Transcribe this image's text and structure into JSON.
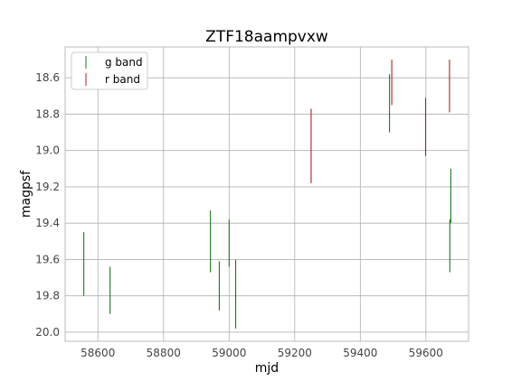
{
  "chart_data": {
    "type": "scatter",
    "title": "ZTF18aampvxw",
    "xlabel": "mjd",
    "ylabel": "magpsf",
    "xlim": [
      58500,
      59730
    ],
    "ylim": [
      20.05,
      18.43
    ],
    "y_inverted": true,
    "grid": true,
    "legend_position": "top-left",
    "xticks": [
      58600,
      58800,
      59000,
      59200,
      59400,
      59600
    ],
    "yticks": [
      18.6,
      18.8,
      19.0,
      19.2,
      19.4,
      19.6,
      19.8,
      20.0
    ],
    "xtick_labels": [
      "58600",
      "58800",
      "59000",
      "59200",
      "59400",
      "59600"
    ],
    "ytick_labels": [
      "18.6",
      "18.8",
      "19.0",
      "19.2",
      "19.4",
      "19.6",
      "19.8",
      "20.0"
    ],
    "series": [
      {
        "name": "g band",
        "color": "#1a7a1a",
        "points": [
          {
            "x": 58557,
            "y_low": 19.45,
            "y_high": 19.8
          },
          {
            "x": 58637,
            "y_low": 19.64,
            "y_high": 19.9
          },
          {
            "x": 58943,
            "y_low": 19.33,
            "y_high": 19.67
          },
          {
            "x": 58970,
            "y_low": 19.61,
            "y_high": 19.88
          },
          {
            "x": 59000,
            "y_low": 19.38,
            "y_high": 19.64
          },
          {
            "x": 59020,
            "y_low": 19.6,
            "y_high": 19.98
          },
          {
            "x": 59489,
            "y_low": 18.58,
            "y_high": 18.9
          },
          {
            "x": 59673,
            "y_low": 19.38,
            "y_high": 19.67
          },
          {
            "x": 59676,
            "y_low": 19.1,
            "y_high": 19.4
          }
        ]
      },
      {
        "name": "r band",
        "color": "#b22222",
        "points": [
          {
            "x": 59250,
            "y_low": 18.77,
            "y_high": 19.18
          },
          {
            "x": 59496,
            "y_low": 18.5,
            "y_high": 18.75
          },
          {
            "x": 59599,
            "y_low": 18.71,
            "y_high": 19.03
          },
          {
            "x": 59672,
            "y_low": 18.5,
            "y_high": 18.79
          }
        ]
      }
    ]
  }
}
